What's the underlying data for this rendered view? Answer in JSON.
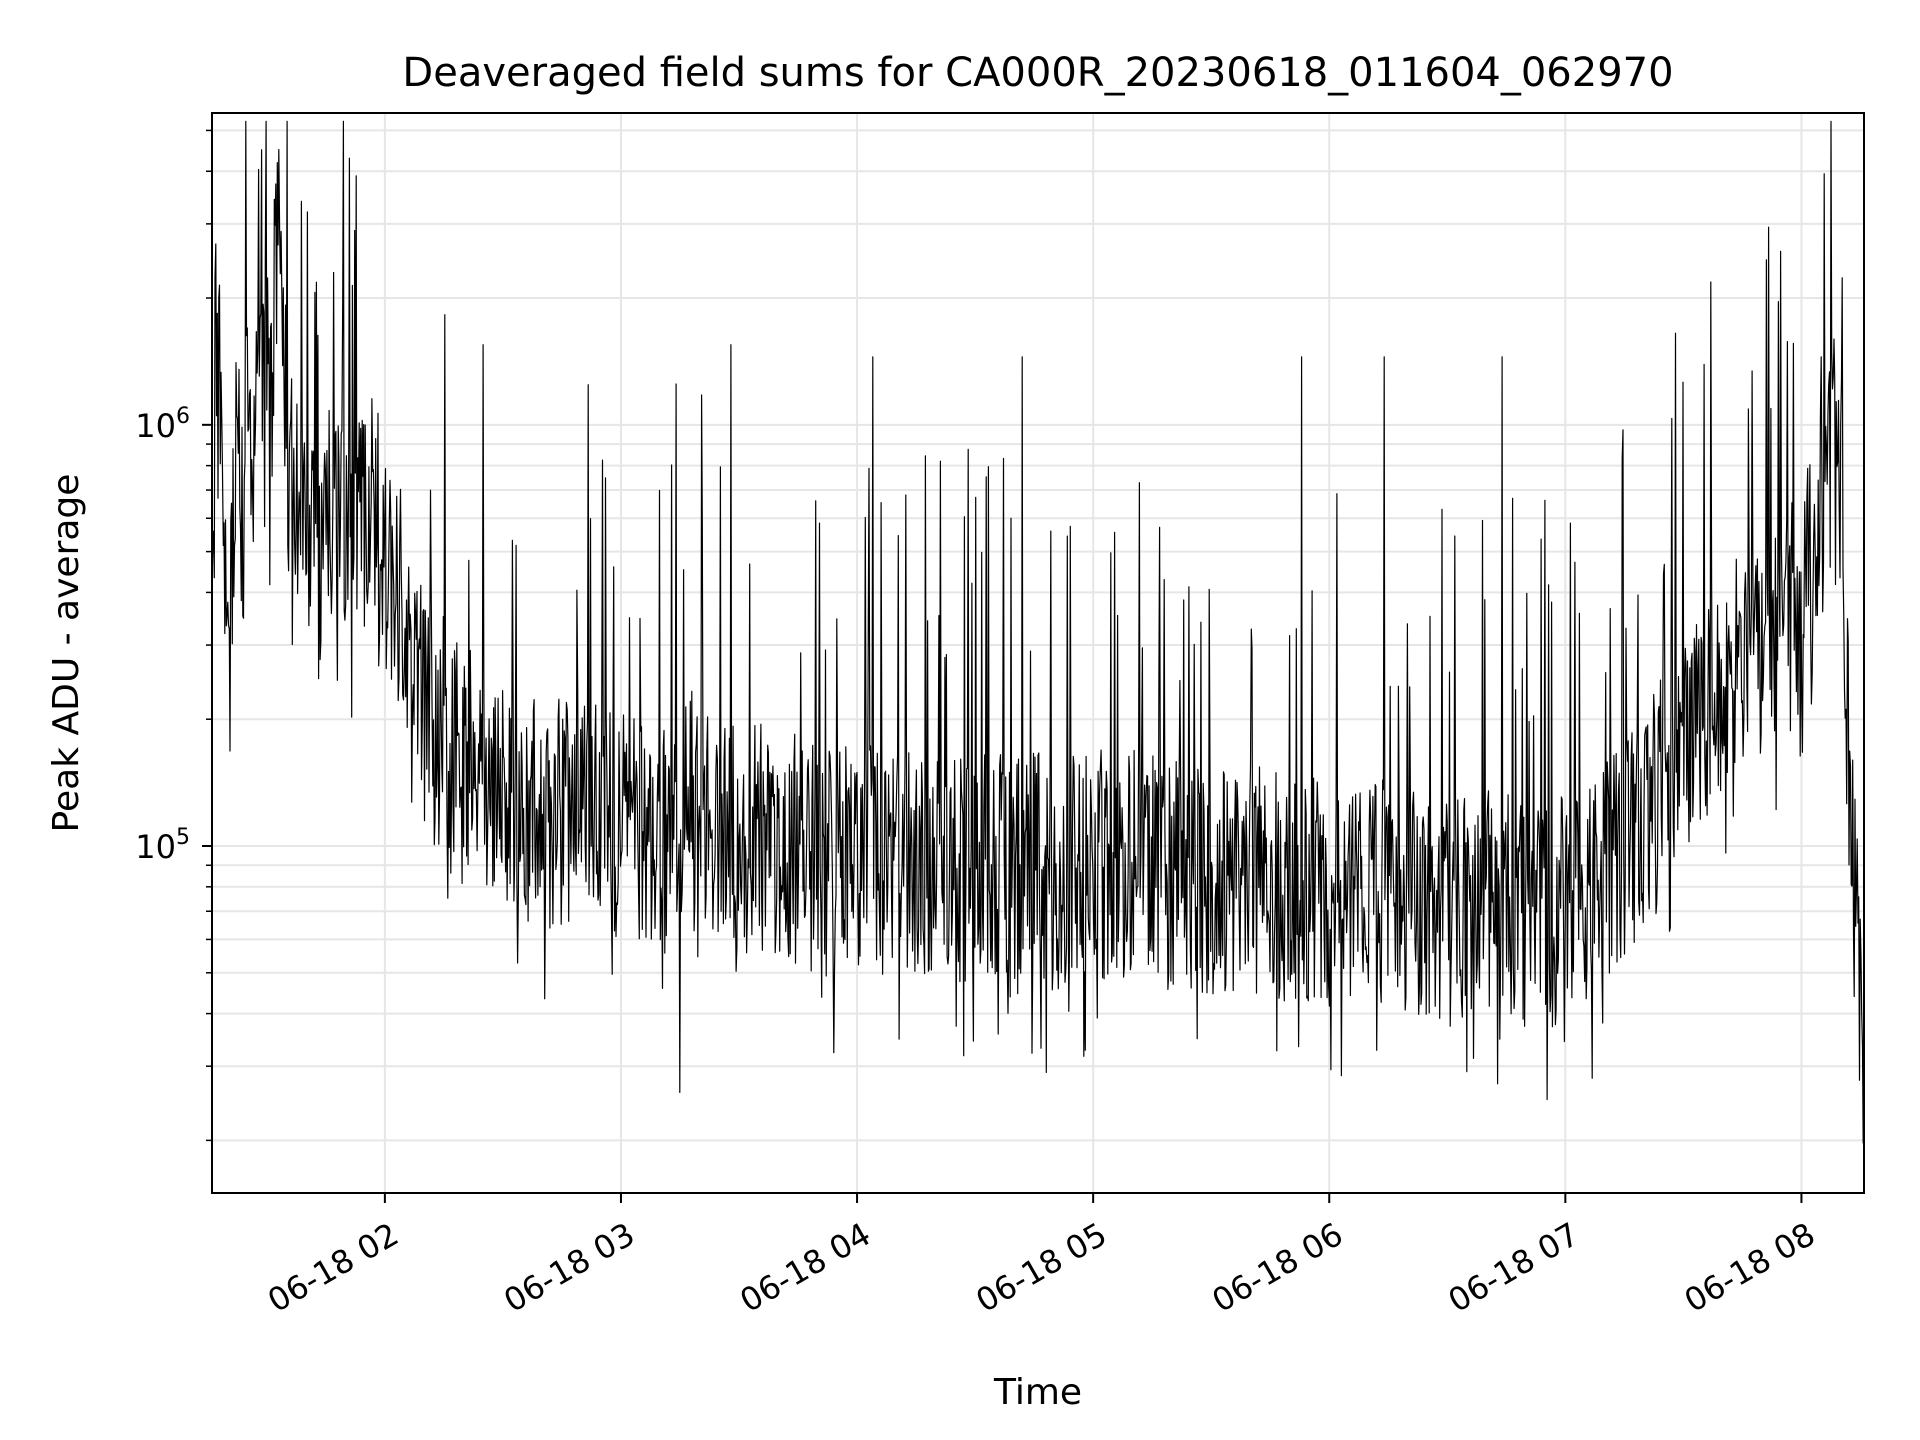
{
  "chart_data": {
    "type": "line",
    "title": "Deaveraged field sums for CA000R_20230618_011604_062970",
    "xlabel": "Time",
    "ylabel": "Peak ADU - average",
    "yscale": "log",
    "ylim": [
      15000,
      5500000
    ],
    "xlim": [
      "2023-06-18T01:16:04",
      "2023-06-18T08:15:54"
    ],
    "grid": true,
    "line_color": "#000000",
    "grid_color": "#e6e6e6",
    "x_ticks": [
      {
        "label": "06-18 02",
        "value": "2023-06-18T02:00:00"
      },
      {
        "label": "06-18 03",
        "value": "2023-06-18T03:00:00"
      },
      {
        "label": "06-18 04",
        "value": "2023-06-18T04:00:00"
      },
      {
        "label": "06-18 05",
        "value": "2023-06-18T05:00:00"
      },
      {
        "label": "06-18 06",
        "value": "2023-06-18T06:00:00"
      },
      {
        "label": "06-18 07",
        "value": "2023-06-18T07:00:00"
      },
      {
        "label": "06-18 08",
        "value": "2023-06-18T08:00:00"
      }
    ],
    "y_ticks": [
      {
        "base": "10",
        "exp": "5",
        "value": 100000
      },
      {
        "base": "10",
        "exp": "6",
        "value": 1000000
      }
    ],
    "series": [
      {
        "x": [
          "2023-06-18T01:16:04",
          "2023-06-18T01:18:00",
          "2023-06-18T01:20:00",
          "2023-06-18T01:22:00",
          "2023-06-18T01:24:00",
          "2023-06-18T01:25:00",
          "2023-06-18T01:27:00",
          "2023-06-18T01:29:00",
          "2023-06-18T01:31:00",
          "2023-06-18T01:33:00",
          "2023-06-18T01:35:00",
          "2023-06-18T01:37:00",
          "2023-06-18T01:39:00",
          "2023-06-18T01:41:00",
          "2023-06-18T01:43:00",
          "2023-06-18T01:45:00",
          "2023-06-18T01:48:00",
          "2023-06-18T01:51:00",
          "2023-06-18T01:54:00",
          "2023-06-18T01:57:00",
          "2023-06-18T02:00:00",
          "2023-06-18T02:04:00",
          "2023-06-18T02:08:00",
          "2023-06-18T02:12:00",
          "2023-06-18T02:16:00",
          "2023-06-18T02:20:00",
          "2023-06-18T02:25:00",
          "2023-06-18T02:30:00",
          "2023-06-18T02:35:00",
          "2023-06-18T02:40:00",
          "2023-06-18T02:45:00",
          "2023-06-18T02:50:00",
          "2023-06-18T02:55:00",
          "2023-06-18T03:00:00",
          "2023-06-18T03:06:00",
          "2023-06-18T03:12:00",
          "2023-06-18T03:18:00",
          "2023-06-18T03:24:00",
          "2023-06-18T03:30:00",
          "2023-06-18T03:36:00",
          "2023-06-18T03:42:00",
          "2023-06-18T03:48:00",
          "2023-06-18T03:54:00",
          "2023-06-18T04:00:00",
          "2023-06-18T04:10:00",
          "2023-06-18T04:20:00",
          "2023-06-18T04:30:00",
          "2023-06-18T04:40:00",
          "2023-06-18T04:50:00",
          "2023-06-18T05:00:00",
          "2023-06-18T05:10:00",
          "2023-06-18T05:20:00",
          "2023-06-18T05:30:00",
          "2023-06-18T05:40:00",
          "2023-06-18T05:50:00",
          "2023-06-18T06:00:00",
          "2023-06-18T06:10:00",
          "2023-06-18T06:20:00",
          "2023-06-18T06:30:00",
          "2023-06-18T06:40:00",
          "2023-06-18T06:50:00",
          "2023-06-18T07:00:00",
          "2023-06-18T07:06:00",
          "2023-06-18T07:12:00",
          "2023-06-18T07:18:00",
          "2023-06-18T07:24:00",
          "2023-06-18T07:30:00",
          "2023-06-18T07:36:00",
          "2023-06-18T07:42:00",
          "2023-06-18T07:48:00",
          "2023-06-18T07:54:00",
          "2023-06-18T08:00:00",
          "2023-06-18T08:03:00",
          "2023-06-18T08:06:00",
          "2023-06-18T08:08:00",
          "2023-06-18T08:10:00",
          "2023-06-18T08:12:00",
          "2023-06-18T08:14:00",
          "2023-06-18T08:15:54"
        ],
        "y": [
          400000,
          1600000,
          300000,
          900000,
          600000,
          1300000,
          800000,
          1500000,
          1100000,
          4500000,
          900000,
          700000,
          600000,
          500000,
          450000,
          700000,
          600000,
          500000,
          550000,
          650000,
          500000,
          400000,
          300000,
          220000,
          180000,
          160000,
          150000,
          140000,
          130000,
          120000,
          120000,
          130000,
          120000,
          110000,
          110000,
          115000,
          130000,
          110000,
          100000,
          105000,
          100000,
          95000,
          90000,
          95000,
          90000,
          85000,
          90000,
          95000,
          85000,
          90000,
          90000,
          85000,
          80000,
          85000,
          80000,
          75000,
          80000,
          75000,
          70000,
          72000,
          70000,
          70000,
          75000,
          90000,
          110000,
          140000,
          180000,
          220000,
          260000,
          300000,
          330000,
          360000,
          500000,
          700000,
          900000,
          800000,
          150000,
          60000,
          30000
        ],
        "spikes": [
          {
            "x": "2023-06-18T01:28:40",
            "y": 4500000
          },
          {
            "x": "2023-06-18T01:47:00",
            "y": 2300000
          },
          {
            "x": "2023-06-18T02:25:00",
            "y": 1550000
          },
          {
            "x": "2023-06-18T03:14:00",
            "y": 1250000
          },
          {
            "x": "2023-06-18T03:28:00",
            "y": 1550000
          },
          {
            "x": "2023-06-18T04:04:00",
            "y": 1450000
          },
          {
            "x": "2023-06-18T04:42:00",
            "y": 1450000
          },
          {
            "x": "2023-06-18T05:53:00",
            "y": 1450000
          },
          {
            "x": "2023-06-18T06:14:00",
            "y": 1450000
          },
          {
            "x": "2023-06-18T06:44:00",
            "y": 1450000
          },
          {
            "x": "2023-06-18T07:28:00",
            "y": 1650000
          },
          {
            "x": "2023-06-18T08:05:00",
            "y": 1450000
          },
          {
            "x": "2023-06-18T03:15:00",
            "y": 26000
          },
          {
            "x": "2023-06-18T04:48:00",
            "y": 29000
          },
          {
            "x": "2023-06-18T06:03:00",
            "y": 28500
          }
        ]
      }
    ]
  }
}
